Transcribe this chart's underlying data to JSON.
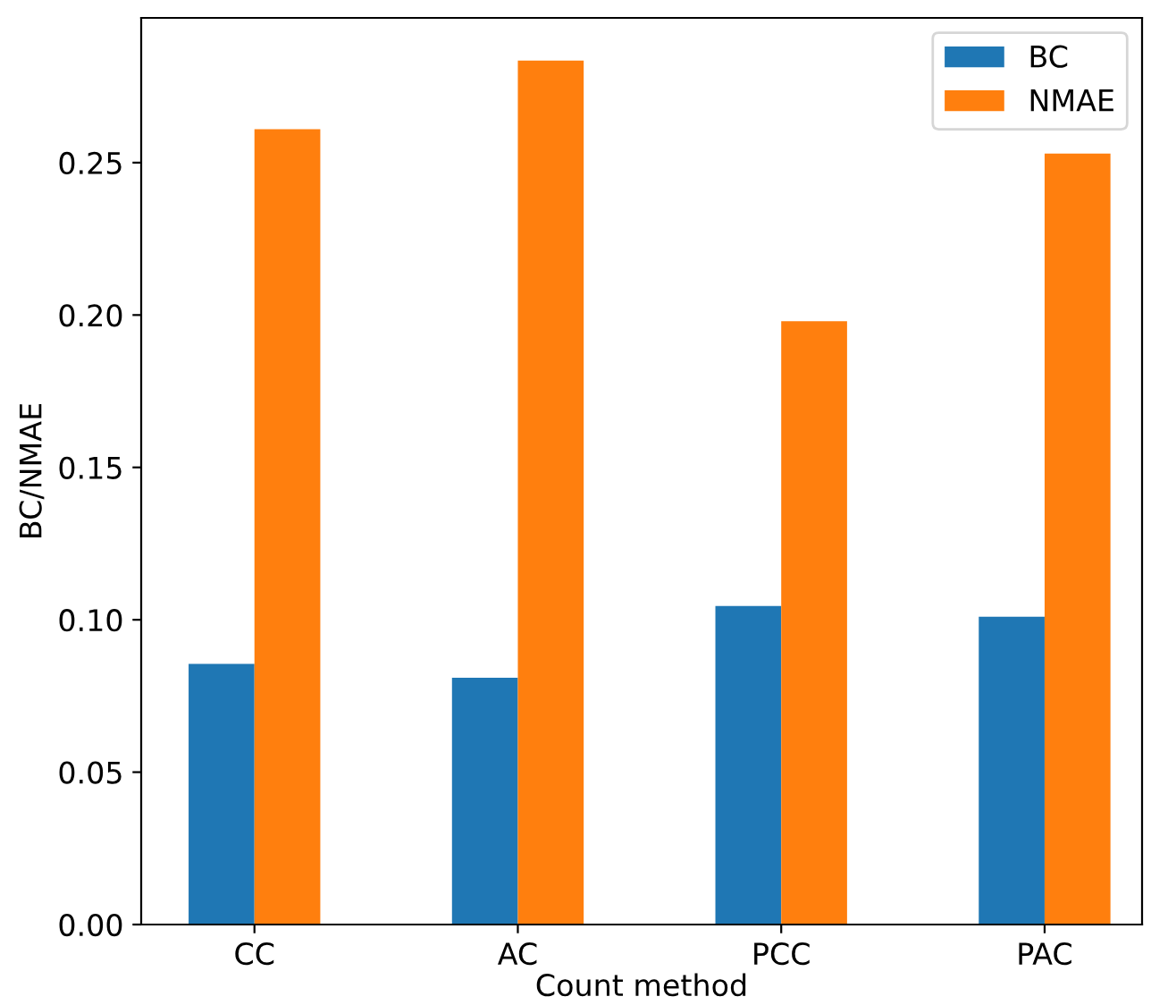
{
  "chart_data": {
    "type": "bar",
    "xlabel": "Count method",
    "ylabel": "BC/NMAE",
    "categories": [
      "CC",
      "AC",
      "PCC",
      "PAC"
    ],
    "series": [
      {
        "name": "BC",
        "color": "#1f77b4",
        "values": [
          0.0855,
          0.081,
          0.1045,
          0.101
        ]
      },
      {
        "name": "NMAE",
        "color": "#ff7f0e",
        "values": [
          0.261,
          0.2835,
          0.198,
          0.253
        ]
      }
    ],
    "ylim": [
      0,
      0.2975
    ],
    "yticks": [
      {
        "value": 0,
        "label": "0.00"
      },
      {
        "value": 0.05,
        "label": "0.05"
      },
      {
        "value": 0.1,
        "label": "0.10"
      },
      {
        "value": 0.15,
        "label": "0.15"
      },
      {
        "value": 0.2,
        "label": "0.20"
      },
      {
        "value": 0.25,
        "label": "0.25"
      }
    ],
    "legend": "top right",
    "grid": false
  }
}
